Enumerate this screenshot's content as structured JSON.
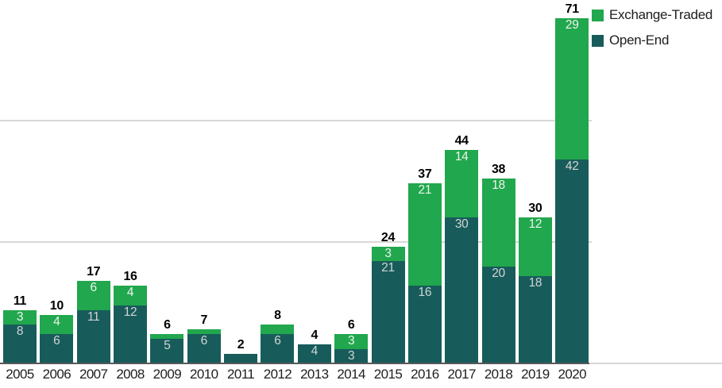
{
  "chart_data": {
    "type": "bar",
    "stacked": true,
    "title": "",
    "categories": [
      "2005",
      "2006",
      "2007",
      "2008",
      "2009",
      "2010",
      "2011",
      "2012",
      "2013",
      "2014",
      "2015",
      "2016",
      "2017",
      "2018",
      "2019",
      "2020"
    ],
    "series": [
      {
        "name": "Exchange-Traded",
        "color": "#21A74D",
        "label_color": "#eef4ee",
        "values": [
          3,
          4,
          6,
          4,
          1,
          1,
          0,
          2,
          0,
          3,
          3,
          21,
          14,
          18,
          12,
          29
        ]
      },
      {
        "name": "Open-End",
        "color": "#175C5B",
        "label_color": "#d2d5d5",
        "values": [
          8,
          6,
          11,
          12,
          5,
          6,
          2,
          6,
          4,
          3,
          21,
          16,
          30,
          20,
          18,
          42
        ]
      }
    ],
    "totals": [
      11,
      10,
      17,
      16,
      6,
      7,
      2,
      8,
      4,
      6,
      24,
      37,
      44,
      38,
      30,
      71
    ],
    "ylim": [
      0,
      74.8
    ],
    "gridlines": [
      25,
      50
    ],
    "grid": "horizontal",
    "legend_position": "top-right",
    "segment_label_min_value": 3,
    "axis_line_color": "#56585a",
    "gridline_color": "#d8d8d8",
    "total_label_color": "#000000",
    "year_label_color": "#1f1f1f"
  }
}
